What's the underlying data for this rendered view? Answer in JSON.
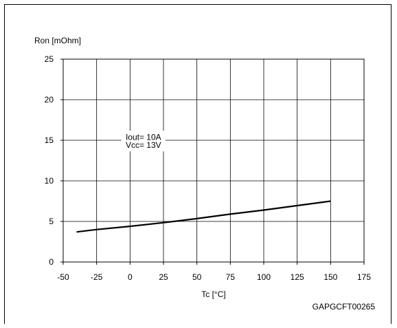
{
  "chart_data": {
    "type": "line",
    "title": "",
    "xlabel": "Tc [°C]",
    "ylabel": "Ron [mOhm]",
    "xlim": [
      -50,
      175
    ],
    "ylim": [
      0,
      25
    ],
    "x_ticks": [
      -50,
      -25,
      0,
      25,
      50,
      75,
      100,
      125,
      150,
      175
    ],
    "y_ticks": [
      0,
      5,
      10,
      15,
      20,
      25
    ],
    "x_tick_labels": [
      "-50",
      "-25",
      "0",
      "25",
      "50",
      "75",
      "100",
      "125",
      "150",
      "175"
    ],
    "y_tick_labels": [
      "0",
      "5",
      "10",
      "15",
      "20",
      "25"
    ],
    "grid": true,
    "series": [
      {
        "x": [
          -40,
          -25,
          0,
          25,
          50,
          75,
          100,
          125,
          150
        ],
        "y": [
          3.7,
          4.0,
          4.4,
          4.85,
          5.35,
          5.9,
          6.4,
          6.95,
          7.5
        ]
      }
    ],
    "annotations": [
      {
        "text": "Iout= 10A",
        "x": 10,
        "y": 15.4
      },
      {
        "text": "Vcc= 13V",
        "x": 10,
        "y": 14.4
      }
    ],
    "figure_code": "GAPGCFT00265"
  }
}
